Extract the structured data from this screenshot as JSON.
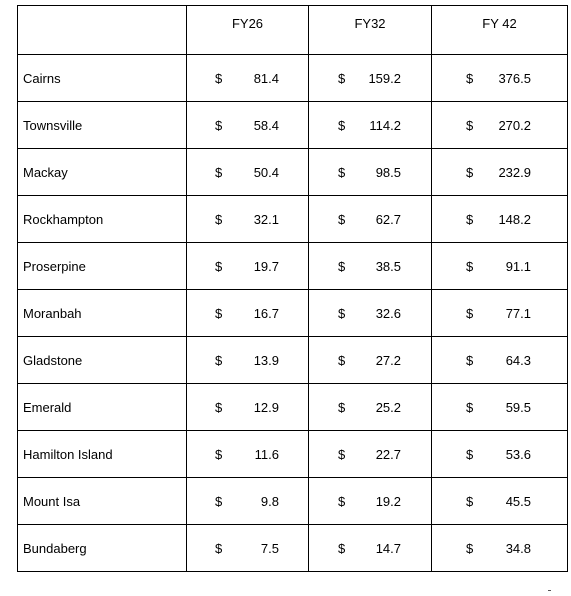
{
  "table": {
    "headers": [
      "",
      "FY26",
      "FY32",
      "FY 42"
    ],
    "currency_symbol": "$",
    "rows": [
      {
        "name": "Cairns",
        "values": [
          "81.4",
          "159.2",
          "376.5"
        ]
      },
      {
        "name": "Townsville",
        "values": [
          "58.4",
          "114.2",
          "270.2"
        ]
      },
      {
        "name": "Mackay",
        "values": [
          "50.4",
          "98.5",
          "232.9"
        ]
      },
      {
        "name": "Rockhampton",
        "values": [
          "32.1",
          "62.7",
          "148.2"
        ]
      },
      {
        "name": "Proserpine",
        "values": [
          "19.7",
          "38.5",
          "91.1"
        ]
      },
      {
        "name": "Moranbah",
        "values": [
          "16.7",
          "32.6",
          "77.1"
        ]
      },
      {
        "name": "Gladstone",
        "values": [
          "13.9",
          "27.2",
          "64.3"
        ]
      },
      {
        "name": "Emerald",
        "values": [
          "12.9",
          "25.2",
          "59.5"
        ]
      },
      {
        "name": "Hamilton Island",
        "values": [
          "11.6",
          "22.7",
          "53.6"
        ]
      },
      {
        "name": "Mount Isa",
        "values": [
          "9.8",
          "19.2",
          "45.5"
        ]
      },
      {
        "name": "Bundaberg",
        "values": [
          "7.5",
          "14.7",
          "34.8"
        ]
      }
    ]
  }
}
